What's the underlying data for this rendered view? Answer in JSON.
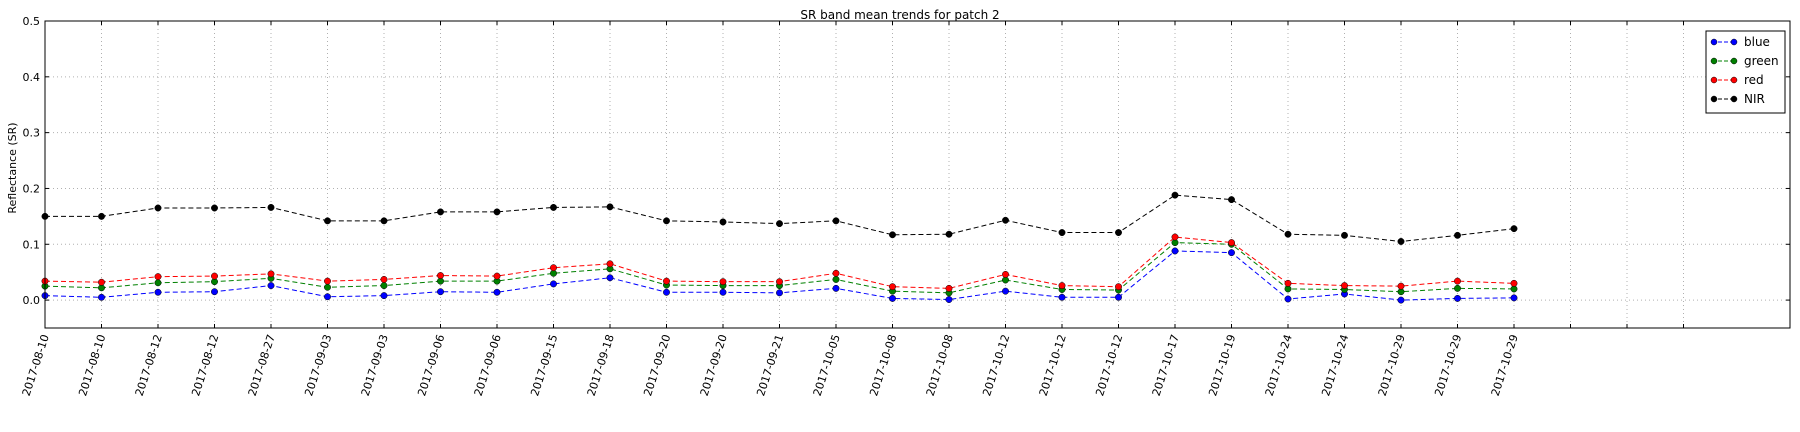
{
  "chart_data": {
    "type": "line",
    "title": "SR band mean trends for patch 2",
    "xlabel": "",
    "ylabel": "Reflectance (SR)",
    "ylim": [
      -0.05,
      0.5
    ],
    "yticks": [
      "0.0",
      "0.1",
      "0.2",
      "0.3",
      "0.4",
      "0.5"
    ],
    "grid": true,
    "legend_position": "top-right",
    "categories": [
      "2017-08-10",
      "2017-08-10",
      "2017-08-12",
      "2017-08-12",
      "2017-08-27",
      "2017-09-03",
      "2017-09-03",
      "2017-09-06",
      "2017-09-06",
      "2017-09-15",
      "2017-09-18",
      "2017-09-20",
      "2017-09-20",
      "2017-09-21",
      "2017-10-05",
      "2017-10-08",
      "2017-10-08",
      "2017-10-12",
      "2017-10-12",
      "2017-10-12",
      "2017-10-17",
      "2017-10-19",
      "2017-10-24",
      "2017-10-24",
      "2017-10-29",
      "2017-10-29",
      "2017-10-29"
    ],
    "series": [
      {
        "name": "blue",
        "color": "#0000ff",
        "values": [
          0.008,
          0.005,
          0.014,
          0.015,
          0.026,
          0.006,
          0.008,
          0.015,
          0.014,
          0.029,
          0.04,
          0.014,
          0.014,
          0.013,
          0.021,
          0.003,
          0.001,
          0.016,
          0.005,
          0.005,
          0.088,
          0.085,
          0.002,
          0.011,
          0.0,
          0.003,
          0.004
        ]
      },
      {
        "name": "green",
        "color": "#008000",
        "values": [
          0.025,
          0.022,
          0.031,
          0.033,
          0.039,
          0.023,
          0.026,
          0.034,
          0.034,
          0.048,
          0.056,
          0.027,
          0.026,
          0.026,
          0.037,
          0.016,
          0.013,
          0.036,
          0.019,
          0.018,
          0.103,
          0.1,
          0.02,
          0.019,
          0.015,
          0.021,
          0.02
        ]
      },
      {
        "name": "red",
        "color": "#ff0000",
        "values": [
          0.034,
          0.032,
          0.042,
          0.043,
          0.047,
          0.034,
          0.037,
          0.044,
          0.043,
          0.058,
          0.065,
          0.034,
          0.033,
          0.033,
          0.048,
          0.024,
          0.021,
          0.046,
          0.026,
          0.024,
          0.113,
          0.103,
          0.03,
          0.026,
          0.025,
          0.034,
          0.03
        ]
      },
      {
        "name": "NIR",
        "color": "#000000",
        "values": [
          0.15,
          0.15,
          0.165,
          0.165,
          0.166,
          0.142,
          0.142,
          0.158,
          0.158,
          0.166,
          0.167,
          0.142,
          0.14,
          0.137,
          0.142,
          0.117,
          0.118,
          0.143,
          0.121,
          0.121,
          0.188,
          0.18,
          0.118,
          0.116,
          0.105,
          0.116,
          0.128
        ]
      }
    ]
  }
}
